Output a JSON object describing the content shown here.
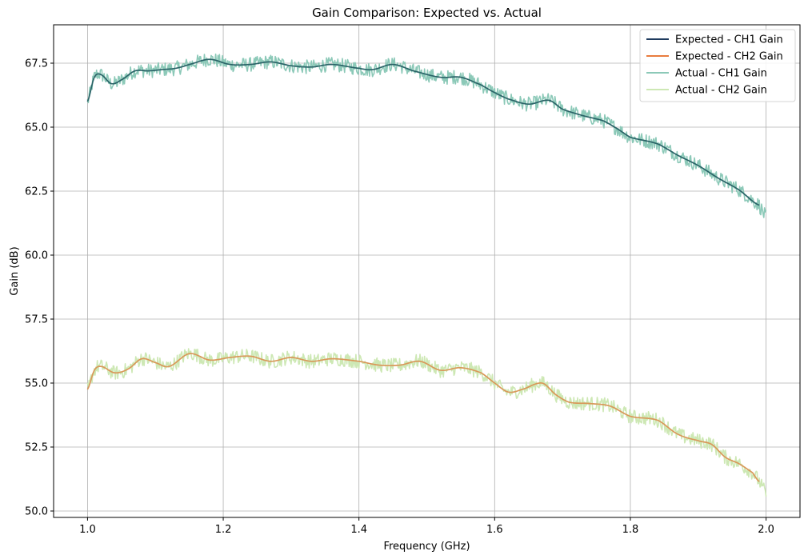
{
  "chart_data": {
    "type": "line",
    "title": "Gain Comparison: Expected vs. Actual",
    "xlabel": "Frequency (GHz)",
    "ylabel": "Gain (dB)",
    "xlim": [
      0.95,
      2.05
    ],
    "ylim": [
      49.75,
      69.0
    ],
    "xticks": [
      1.0,
      1.2,
      1.4,
      1.6,
      1.8,
      2.0
    ],
    "xtick_labels": [
      "1.0",
      "1.2",
      "1.4",
      "1.6",
      "1.8",
      "2.0"
    ],
    "yticks": [
      50.0,
      52.5,
      55.0,
      57.5,
      60.0,
      62.5,
      65.0,
      67.5
    ],
    "ytick_labels": [
      "50.0",
      "52.5",
      "55.0",
      "57.5",
      "60.0",
      "62.5",
      "65.0",
      "67.5"
    ],
    "grid": true,
    "legend_position": "top-right",
    "noise_amplitude_db": 0.28,
    "series": [
      {
        "name": "Expected - CH1 Gain",
        "color": "#1f3b5e",
        "style": "smooth",
        "x": [
          1.0,
          1.01,
          1.02,
          1.035,
          1.05,
          1.07,
          1.09,
          1.11,
          1.13,
          1.15,
          1.18,
          1.21,
          1.24,
          1.27,
          1.3,
          1.33,
          1.36,
          1.4,
          1.42,
          1.45,
          1.48,
          1.52,
          1.55,
          1.58,
          1.6,
          1.62,
          1.65,
          1.68,
          1.7,
          1.73,
          1.76,
          1.78,
          1.8,
          1.84,
          1.87,
          1.9,
          1.93,
          1.96,
          1.99
        ],
        "y": [
          66.0,
          66.95,
          67.05,
          66.7,
          66.85,
          67.2,
          67.2,
          67.25,
          67.3,
          67.45,
          67.65,
          67.45,
          67.45,
          67.55,
          67.4,
          67.35,
          67.45,
          67.3,
          67.25,
          67.45,
          67.2,
          66.95,
          66.95,
          66.65,
          66.35,
          66.1,
          65.9,
          66.05,
          65.7,
          65.45,
          65.25,
          64.95,
          64.6,
          64.35,
          63.9,
          63.5,
          63.0,
          62.55,
          61.95
        ]
      },
      {
        "name": "Expected - CH2 Gain",
        "color": "#e97c3e",
        "style": "smooth",
        "x": [
          1.0,
          1.01,
          1.02,
          1.04,
          1.06,
          1.08,
          1.1,
          1.12,
          1.15,
          1.18,
          1.21,
          1.24,
          1.27,
          1.3,
          1.33,
          1.36,
          1.4,
          1.43,
          1.46,
          1.49,
          1.52,
          1.55,
          1.58,
          1.6,
          1.62,
          1.64,
          1.67,
          1.69,
          1.71,
          1.74,
          1.77,
          1.8,
          1.84,
          1.87,
          1.9,
          1.92,
          1.94,
          1.96,
          1.98,
          1.99
        ],
        "y": [
          54.75,
          55.5,
          55.65,
          55.4,
          55.55,
          55.95,
          55.8,
          55.65,
          56.15,
          55.9,
          56.0,
          56.05,
          55.85,
          56.0,
          55.85,
          55.95,
          55.85,
          55.7,
          55.7,
          55.85,
          55.5,
          55.6,
          55.4,
          55.0,
          54.65,
          54.75,
          55.0,
          54.55,
          54.25,
          54.2,
          54.1,
          53.7,
          53.55,
          53.0,
          52.75,
          52.6,
          52.1,
          51.85,
          51.5,
          51.15
        ]
      },
      {
        "name": "Actual - CH1 Gain",
        "color": "#8cc9b8",
        "style": "noisy",
        "follows": 0,
        "x_end": 2.0,
        "y_end": 61.5
      },
      {
        "name": "Actual - CH2 Gain",
        "color": "#cde8b4",
        "style": "noisy",
        "follows": 1,
        "x_end": 2.0,
        "y_end": 50.7
      }
    ]
  }
}
